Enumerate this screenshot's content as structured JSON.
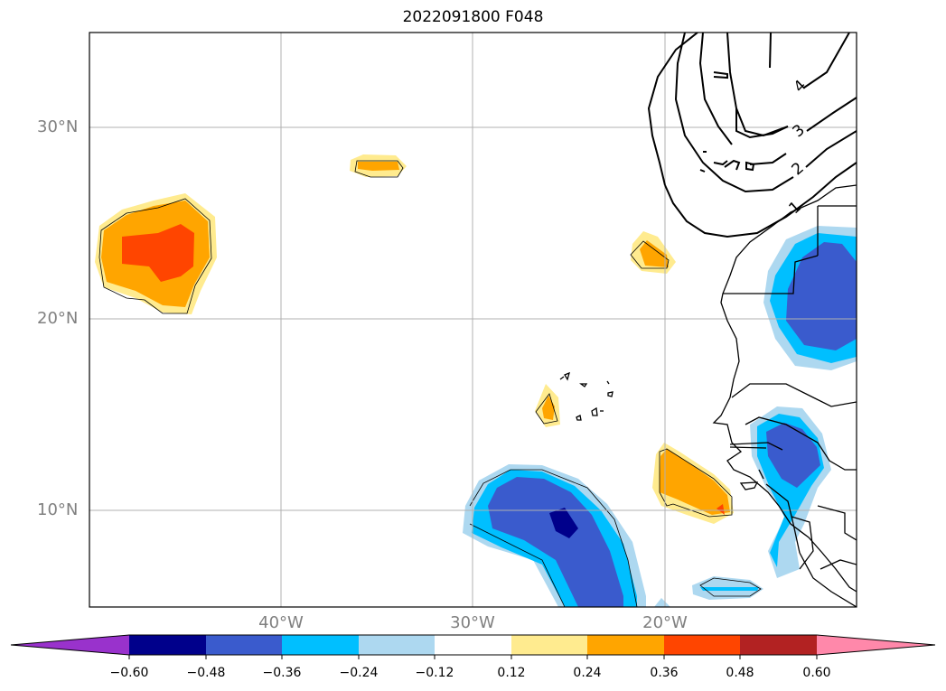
{
  "title": "2022091800 F048",
  "map": {
    "lat_labels": [
      {
        "text": "30°N",
        "lat": 30
      },
      {
        "text": "20°N",
        "lat": 20
      },
      {
        "text": "10°N",
        "lat": 10
      }
    ],
    "lon_labels": [
      {
        "text": "40°W",
        "lon": -40
      },
      {
        "text": "30°W",
        "lon": -30
      },
      {
        "text": "20°W",
        "lon": -20
      }
    ],
    "contour_labels": [
      "4",
      "3",
      "2",
      "1"
    ]
  },
  "colorbar": {
    "colors": [
      "#9932cc",
      "#00008b",
      "#3a5bcd",
      "#00bfff",
      "#add8f0",
      "#ffffff",
      "#ffeb8f",
      "#ffa500",
      "#ff4500",
      "#b22222",
      "#ff88aa"
    ],
    "tick_labels": [
      "−0.60",
      "−0.48",
      "−0.36",
      "−0.24",
      "−0.12",
      "0.12",
      "0.24",
      "0.36",
      "0.48",
      "0.60"
    ]
  }
}
